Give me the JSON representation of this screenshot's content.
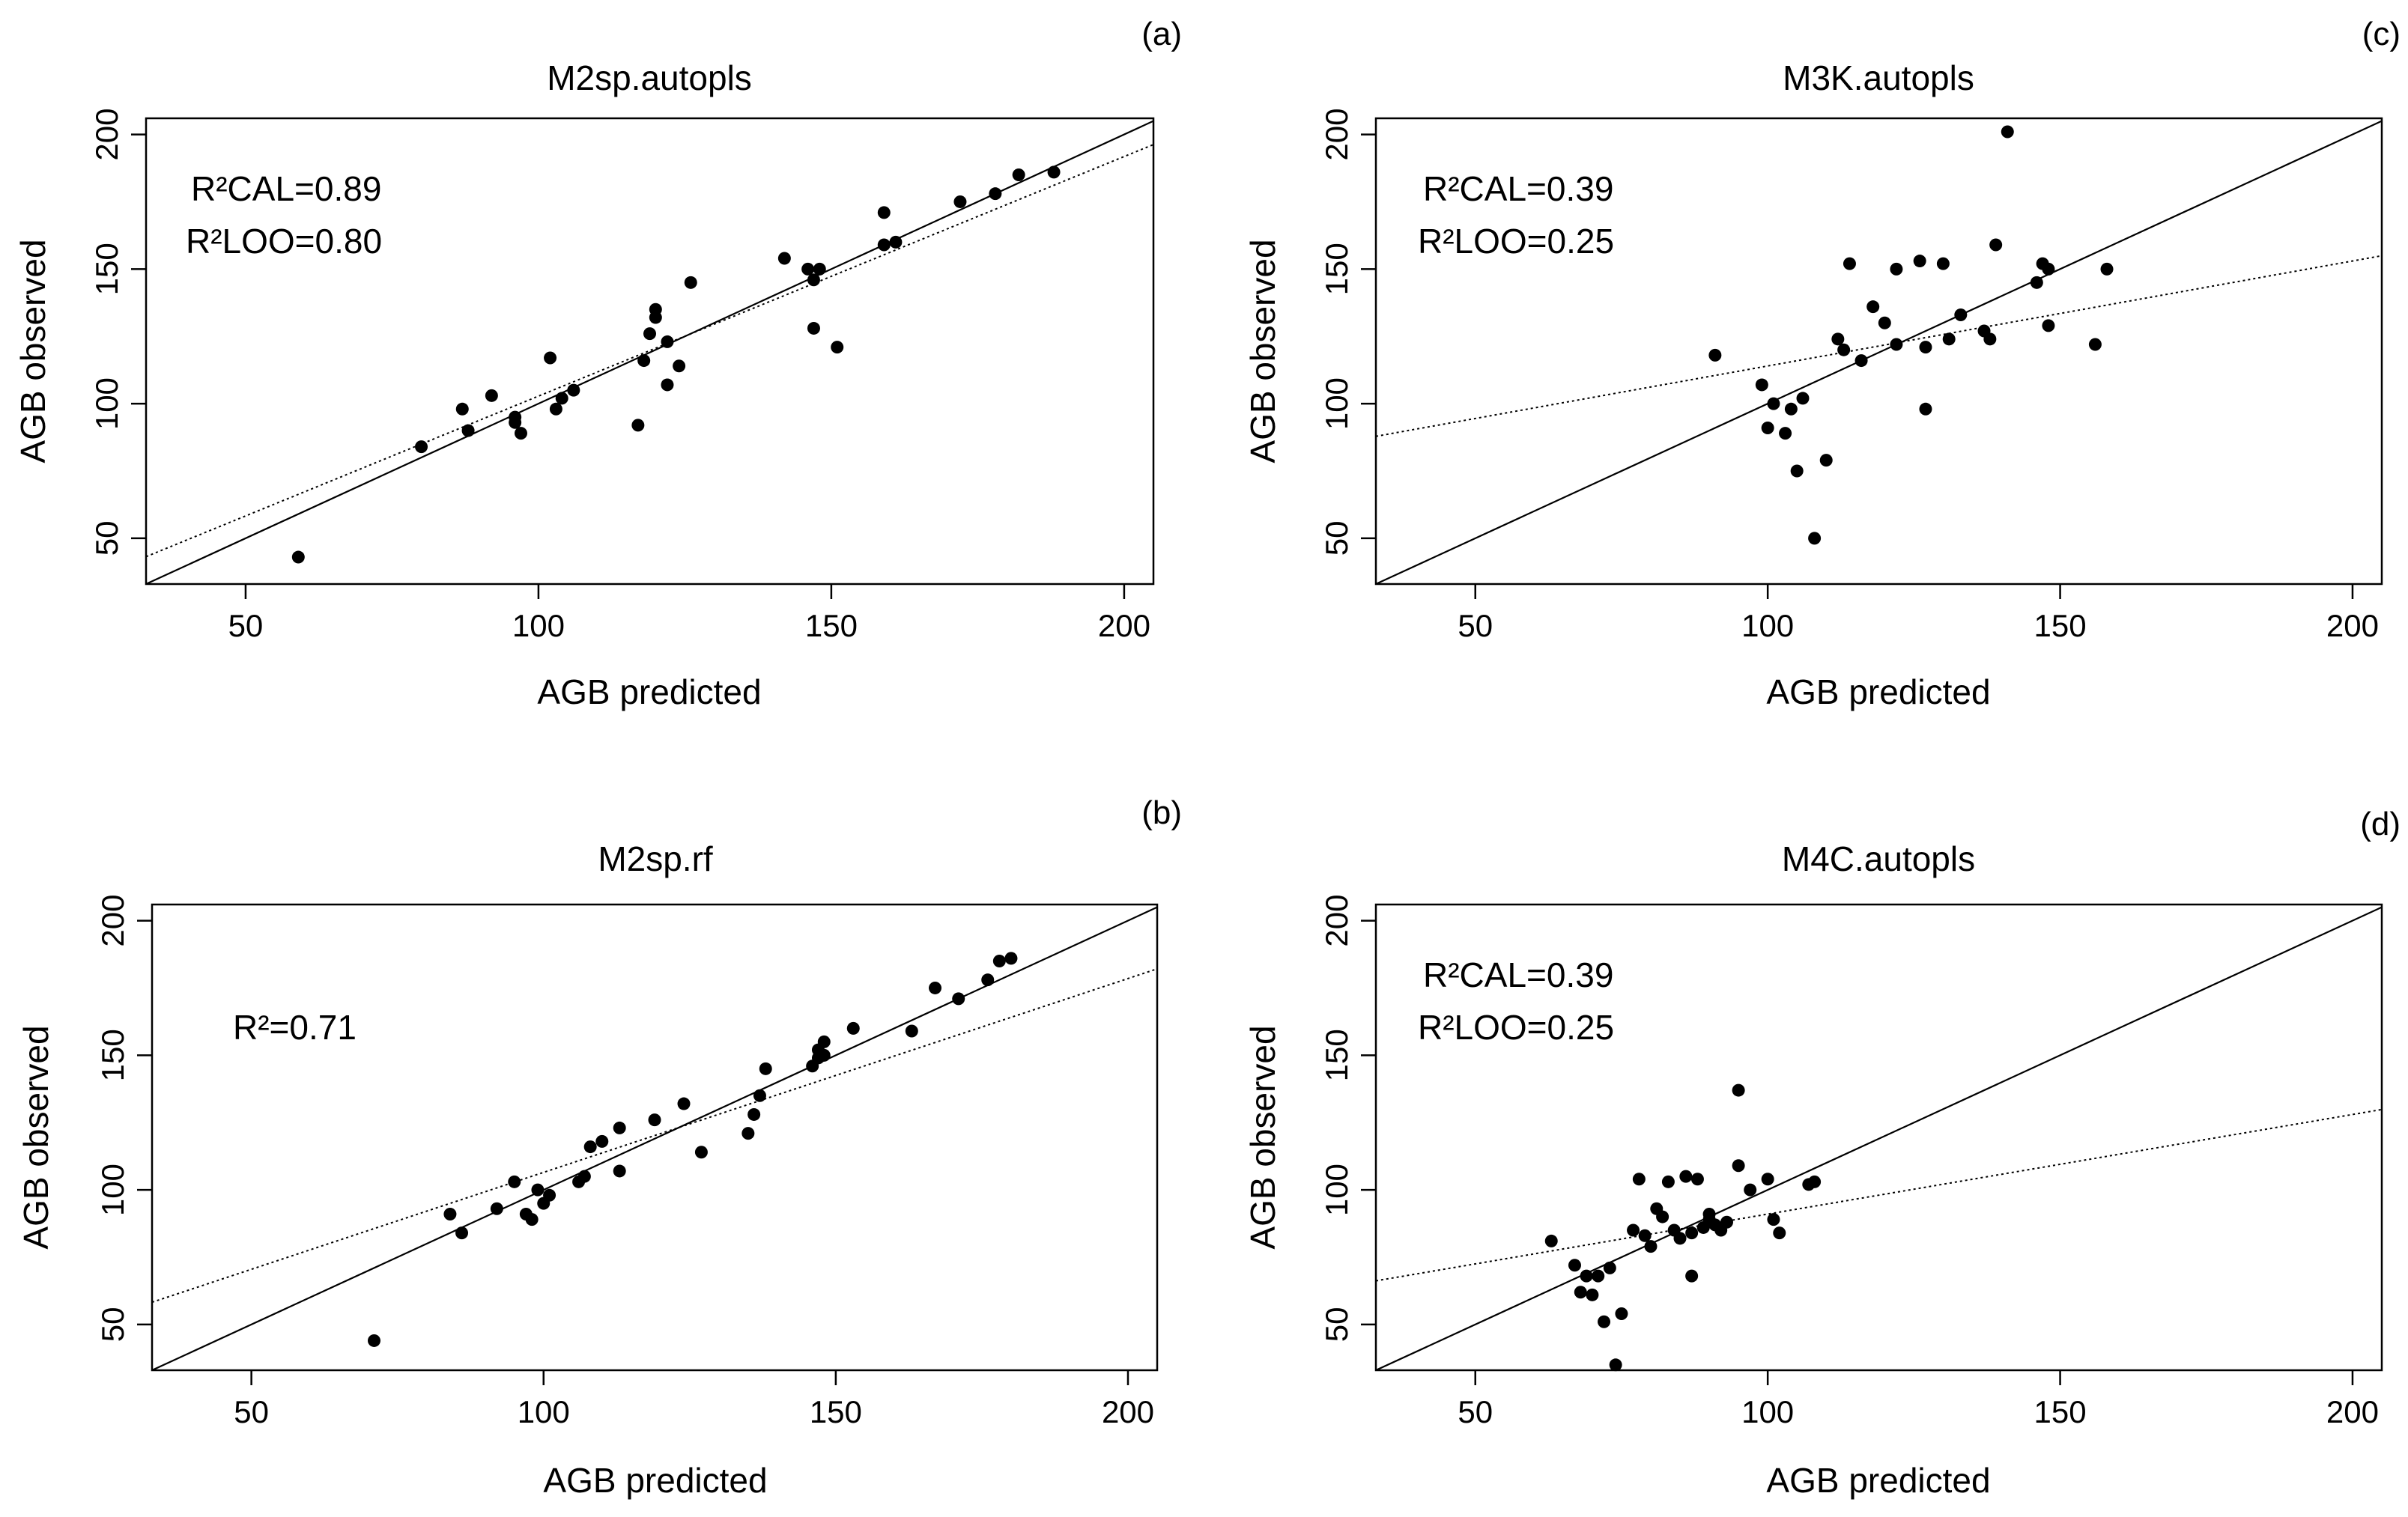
{
  "figure": {
    "shared": {
      "xlabel": "AGB predicted",
      "ylabel": "AGB observed",
      "xlim": [
        33,
        205
      ],
      "ylim": [
        33,
        206
      ],
      "xticks": [
        50,
        100,
        150,
        200
      ],
      "yticks": [
        50,
        100,
        150,
        200
      ],
      "colors": {
        "points": "#000000",
        "lines": "#000000",
        "background": "#ffffff"
      }
    }
  },
  "chart_data": [
    {
      "type": "scatter",
      "panel_label": "(a)",
      "title": "M2sp.autopls",
      "xlabel": "AGB predicted",
      "ylabel": "AGB observed",
      "annotations": [
        "R²CAL=0.89",
        "R²LOO=0.80"
      ],
      "identity_line": true,
      "regression": {
        "intercept": 13.8,
        "slope": 0.89
      },
      "x": [
        59,
        80,
        87,
        88,
        92,
        96,
        96,
        97,
        102,
        103,
        104,
        106,
        117,
        118,
        119,
        120,
        120,
        122,
        122,
        124,
        126,
        142,
        146,
        147,
        147,
        148,
        151,
        159,
        159,
        161,
        172,
        178,
        182,
        188
      ],
      "y": [
        43,
        84,
        98,
        90,
        103,
        95,
        93,
        89,
        117,
        98,
        102,
        105,
        92,
        116,
        126,
        132,
        135,
        123,
        107,
        114,
        145,
        154,
        150,
        146,
        128,
        150,
        121,
        159,
        171,
        160,
        175,
        178,
        185,
        186
      ]
    },
    {
      "type": "scatter",
      "panel_label": "(b)",
      "title": "M2sp.rf",
      "xlabel": "AGB predicted",
      "ylabel": "AGB observed",
      "annotations": [
        "R²=0.71"
      ],
      "identity_line": true,
      "regression": {
        "intercept": 34.5,
        "slope": 0.72
      },
      "x": [
        71,
        84,
        86,
        92,
        95,
        97,
        98,
        99,
        100,
        101,
        106,
        107,
        108,
        110,
        113,
        113,
        119,
        124,
        127,
        135,
        136,
        137,
        138,
        146,
        147,
        147,
        148,
        148,
        153,
        163,
        167,
        171,
        176,
        178,
        180
      ],
      "y": [
        44,
        91,
        84,
        93,
        103,
        91,
        89,
        100,
        95,
        98,
        103,
        105,
        116,
        118,
        107,
        123,
        126,
        132,
        114,
        121,
        128,
        135,
        145,
        146,
        149,
        152,
        150,
        155,
        160,
        159,
        175,
        171,
        178,
        185,
        186
      ]
    },
    {
      "type": "scatter",
      "panel_label": "(c)",
      "title": "M3K.autopls",
      "xlabel": "AGB predicted",
      "ylabel": "AGB observed",
      "annotations": [
        "R²CAL=0.39",
        "R²LOO=0.25"
      ],
      "identity_line": true,
      "regression": {
        "intercept": 75,
        "slope": 0.39
      },
      "x": [
        91,
        99,
        100,
        101,
        103,
        104,
        105,
        106,
        108,
        110,
        112,
        113,
        114,
        116,
        118,
        120,
        122,
        122,
        126,
        127,
        127,
        130,
        131,
        133,
        137,
        138,
        139,
        146,
        147,
        148,
        148,
        156,
        158,
        141
      ],
      "y": [
        118,
        107,
        91,
        100,
        89,
        98,
        75,
        102,
        50,
        79,
        124,
        120,
        152,
        116,
        136,
        130,
        122,
        150,
        153,
        121,
        98,
        152,
        124,
        133,
        127,
        124,
        159,
        145,
        152,
        150,
        129,
        122,
        150,
        201
      ]
    },
    {
      "type": "scatter",
      "panel_label": "(d)",
      "title": "M4C.autopls",
      "xlabel": "AGB predicted",
      "ylabel": "AGB observed",
      "annotations": [
        "R²CAL=0.39",
        "R²LOO=0.25"
      ],
      "identity_line": true,
      "regression": {
        "intercept": 54,
        "slope": 0.37
      },
      "x": [
        63,
        67,
        68,
        69,
        70,
        71,
        72,
        73,
        74,
        75,
        77,
        78,
        79,
        80,
        81,
        82,
        83,
        84,
        85,
        86,
        87,
        87,
        88,
        89,
        90,
        90,
        91,
        92,
        93,
        95,
        95,
        97,
        100,
        101,
        102,
        107,
        108
      ],
      "y": [
        81,
        72,
        62,
        68,
        61,
        68,
        51,
        71,
        35,
        54,
        85,
        104,
        83,
        79,
        93,
        90,
        103,
        85,
        82,
        105,
        84,
        68,
        104,
        86,
        91,
        89,
        87,
        85,
        88,
        109,
        137,
        100,
        104,
        89,
        84,
        102,
        103
      ]
    }
  ]
}
